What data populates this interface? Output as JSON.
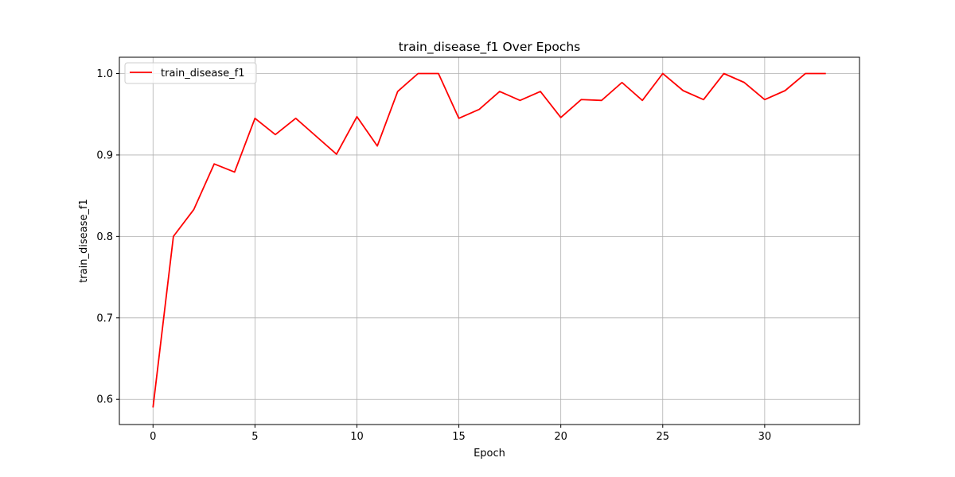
{
  "chart_data": {
    "type": "line",
    "title": "train_disease_f1 Over Epochs",
    "xlabel": "Epoch",
    "ylabel": "train_disease_f1",
    "xlim": [
      -1.65,
      34.65
    ],
    "ylim": [
      0.569,
      1.02
    ],
    "xticks": [
      0,
      5,
      10,
      15,
      20,
      25,
      30
    ],
    "yticks": [
      0.6,
      0.7,
      0.8,
      0.9,
      1.0
    ],
    "ytick_labels": [
      "0.6",
      "0.7",
      "0.8",
      "0.9",
      "1.0"
    ],
    "grid": true,
    "legend_position": "top-left",
    "series": [
      {
        "name": "train_disease_f1",
        "color": "#ff0000",
        "x": [
          0,
          1,
          2,
          3,
          4,
          5,
          6,
          7,
          8,
          9,
          10,
          11,
          12,
          13,
          14,
          15,
          16,
          17,
          18,
          19,
          20,
          21,
          22,
          23,
          24,
          25,
          26,
          27,
          28,
          29,
          30,
          31,
          32,
          33
        ],
        "values": [
          0.59,
          0.8,
          0.833,
          0.889,
          0.879,
          0.945,
          0.925,
          0.945,
          0.923,
          0.901,
          0.947,
          0.911,
          0.978,
          1.0,
          1.0,
          0.945,
          0.956,
          0.978,
          0.967,
          0.978,
          0.946,
          0.968,
          0.967,
          0.989,
          0.967,
          1.0,
          0.979,
          0.968,
          1.0,
          0.989,
          0.968,
          0.979,
          1.0,
          1.0
        ]
      }
    ]
  }
}
